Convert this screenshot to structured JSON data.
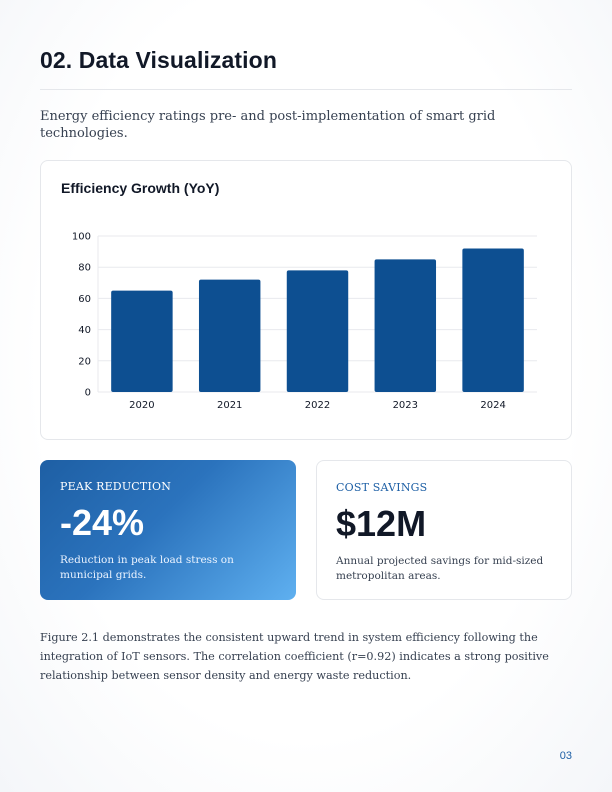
{
  "section": {
    "title": "02. Data Visualization"
  },
  "intro": "Energy efficiency ratings pre- and post-implementation of smart grid technologies.",
  "chart_data": {
    "type": "bar",
    "title": "Efficiency Growth (YoY)",
    "categories": [
      "2020",
      "2021",
      "2022",
      "2023",
      "2024"
    ],
    "values": [
      65,
      72,
      78,
      85,
      92
    ],
    "ylim": [
      0,
      100
    ],
    "yticks": [
      0,
      20,
      40,
      60,
      80,
      100
    ],
    "xlabel": "",
    "ylabel": "",
    "grid": true,
    "bar_color": "#0d4f91"
  },
  "stats": [
    {
      "label": "PEAK REDUCTION",
      "value": "-24%",
      "description": "Reduction in peak load stress on municipal grids."
    },
    {
      "label": "COST SAVINGS",
      "value": "$12M",
      "description": "Annual projected savings for mid-sized metropolitan areas."
    }
  ],
  "caption": "Figure 2.1 demonstrates the consistent upward trend in system efficiency following the integration of IoT sensors. The correlation coefficient (r=0.92) indicates a strong positive relationship between sensor density and energy waste reduction.",
  "page_number": "03",
  "colors": {
    "accent": "#1d5fa5",
    "bar": "#0d4f91",
    "gradient_start": "#1e5fa4",
    "gradient_end": "#5fb0f0"
  }
}
